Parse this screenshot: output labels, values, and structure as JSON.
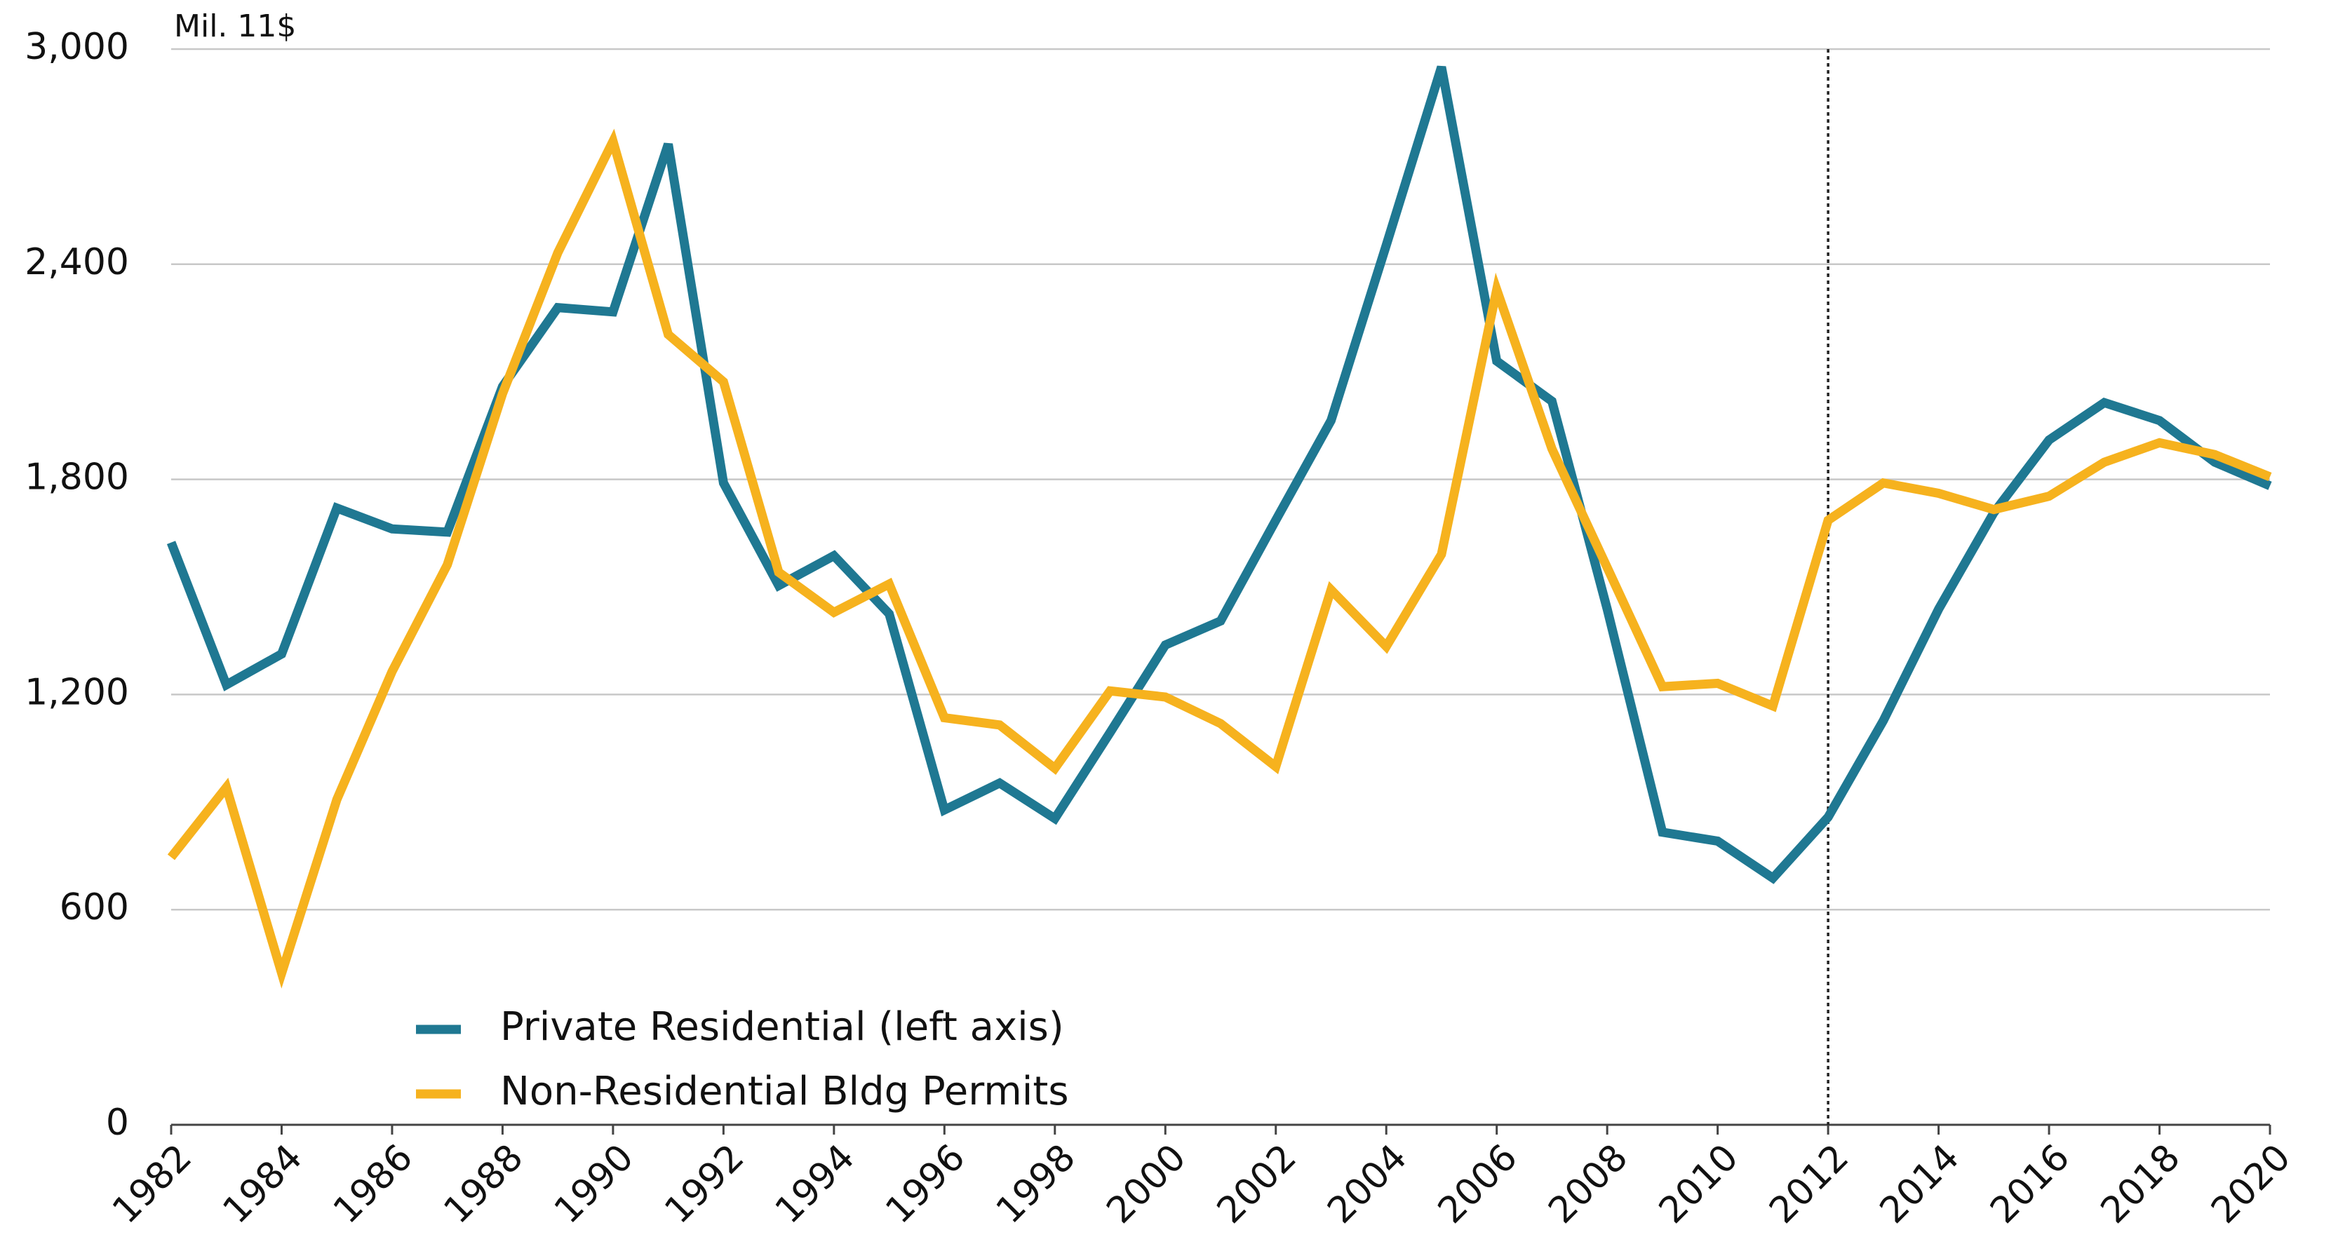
{
  "chart_data": {
    "type": "line",
    "y_axis_label": "Mil. 11$",
    "x": [
      1982,
      1983,
      1984,
      1985,
      1986,
      1987,
      1988,
      1989,
      1990,
      1991,
      1992,
      1993,
      1994,
      1995,
      1996,
      1997,
      1998,
      1999,
      2000,
      2001,
      2002,
      2003,
      2004,
      2005,
      2006,
      2007,
      2008,
      2009,
      2010,
      2011,
      2012,
      2013,
      2014,
      2015,
      2016,
      2017,
      2018,
      2019,
      2020
    ],
    "series": [
      {
        "name": "Private Residential (left axis)",
        "color": "#1f7892",
        "values": [
          1624,
          1227,
          1313,
          1720,
          1662,
          1653,
          2059,
          2279,
          2267,
          2735,
          1790,
          1504,
          1587,
          1425,
          878,
          953,
          854,
          1094,
          1338,
          1405,
          1686,
          1964,
          2453,
          2950,
          2130,
          2018,
          1438,
          816,
          791,
          688,
          858,
          1127,
          1438,
          1707,
          1910,
          2014,
          1964,
          1848,
          1782
        ]
      },
      {
        "name": "Non-Residential Bldg Permits",
        "color": "#f6b21e",
        "values": [
          746,
          941,
          423,
          907,
          1264,
          1562,
          2039,
          2432,
          2743,
          2204,
          2072,
          1541,
          1429,
          1508,
          1135,
          1115,
          994,
          1210,
          1193,
          1119,
          999,
          1492,
          1334,
          1591,
          2329,
          1885,
          1554,
          1222,
          1231,
          1168,
          1686,
          1790,
          1761,
          1716,
          1753,
          1848,
          1902,
          1869,
          1807
        ]
      }
    ],
    "xlim": [
      1982,
      2020
    ],
    "xticks": [
      1982,
      1984,
      1986,
      1988,
      1990,
      1992,
      1994,
      1996,
      1998,
      2000,
      2002,
      2004,
      2006,
      2008,
      2010,
      2012,
      2014,
      2016,
      2018,
      2020
    ],
    "ylim": [
      0,
      3000
    ],
    "yticks": [
      0,
      {
        "value": 600,
        "label": "600"
      },
      {
        "value": 1200,
        "label": "1,200"
      },
      {
        "value": 1800,
        "label": "1,800"
      },
      {
        "value": 2400,
        "label": "2,400"
      },
      {
        "value": 3000,
        "label": "3,000"
      }
    ],
    "grid": true,
    "vertical_line": 2012,
    "legend": "lower left"
  }
}
